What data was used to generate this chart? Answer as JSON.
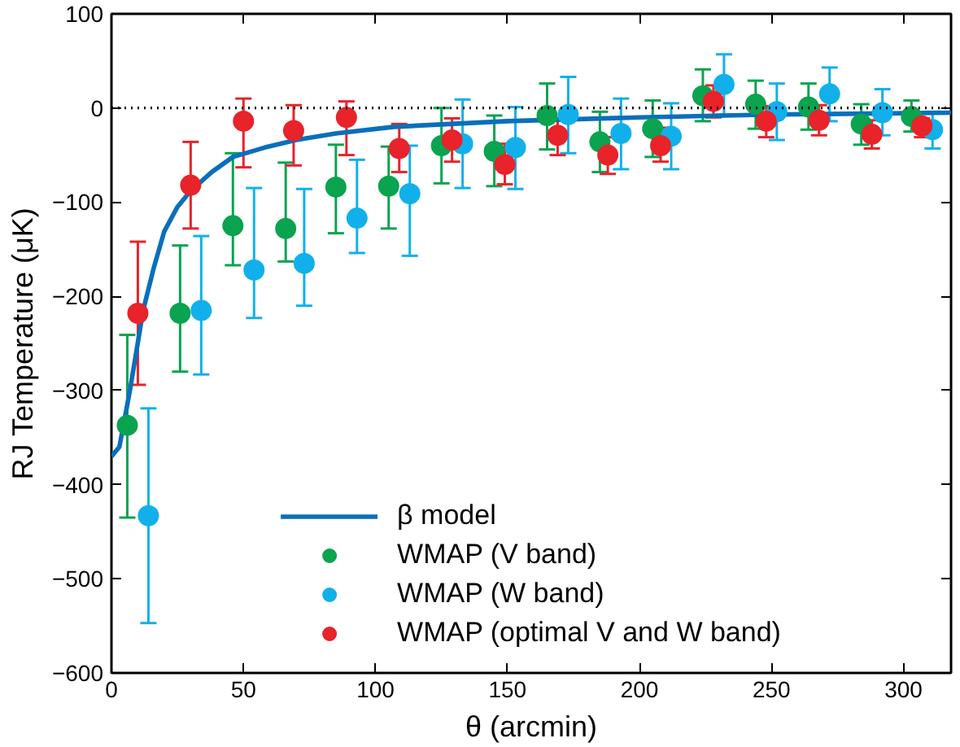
{
  "chart_data": {
    "type": "scatter",
    "xlabel": "θ (arcmin)",
    "ylabel": "RJ Temperature (μK)",
    "xlim": [
      0,
      318
    ],
    "ylim": [
      -600,
      100
    ],
    "xticks": [
      0,
      50,
      100,
      150,
      200,
      250,
      300
    ],
    "yticks": [
      -600,
      -500,
      -400,
      -300,
      -200,
      -100,
      0,
      100
    ],
    "grid": false,
    "legend": "bottom",
    "ref_lines": [
      {
        "axis": "y",
        "value": 0,
        "color": "#000000",
        "line_style": "dotted"
      }
    ],
    "series": [
      {
        "name": "β model",
        "type": "line",
        "marker": "none",
        "color": "#0a6fba",
        "line_style": "solid",
        "x": [
          0,
          3,
          7,
          12,
          16,
          20,
          25,
          30,
          38,
          46,
          58,
          70,
          85,
          107,
          150,
          200,
          250,
          318
        ],
        "values": [
          -370,
          -360,
          -300,
          -215,
          -170,
          -131,
          -105,
          -88,
          -68,
          -52,
          -42,
          -34,
          -27,
          -20,
          -14,
          -10,
          -7,
          -5
        ]
      },
      {
        "name": "WMAP (V band)",
        "marker": "circle",
        "color": "#0aa350",
        "x": [
          6,
          26,
          46,
          66,
          85,
          105,
          125,
          145,
          165,
          185,
          205,
          224,
          244,
          264,
          284,
          303
        ],
        "values": [
          -337,
          -218,
          -125,
          -128,
          -84,
          -83,
          -40,
          -46,
          -8,
          -36,
          -22,
          13,
          4,
          1,
          -17,
          -9
        ],
        "errors": [
          [
            -435,
            -241
          ],
          [
            -280,
            -146
          ],
          [
            -167,
            -48
          ],
          [
            -163,
            -58
          ],
          [
            -133,
            -39
          ],
          [
            -128,
            -41
          ],
          [
            -80,
            0
          ],
          [
            -83,
            -8
          ],
          [
            -44,
            26
          ],
          [
            -68,
            -4
          ],
          [
            -52,
            8
          ],
          [
            -14,
            41
          ],
          [
            -22,
            29
          ],
          [
            -23,
            26
          ],
          [
            -39,
            4
          ],
          [
            -25,
            8
          ]
        ]
      },
      {
        "name": "WMAP (W band)",
        "marker": "circle",
        "color": "#12b0ea",
        "x": [
          14,
          34,
          54,
          73,
          93,
          113,
          133,
          153,
          173,
          193,
          212,
          232,
          252,
          272,
          292,
          311
        ],
        "values": [
          -433,
          -215,
          -172,
          -165,
          -117,
          -91,
          -38,
          -42,
          -7,
          -27,
          -30,
          25,
          -4,
          15,
          -5,
          -23
        ],
        "errors": [
          [
            -547,
            -319
          ],
          [
            -283,
            -136
          ],
          [
            -223,
            -85
          ],
          [
            -210,
            -86
          ],
          [
            -154,
            -55
          ],
          [
            -157,
            -40
          ],
          [
            -85,
            9
          ],
          [
            -86,
            1
          ],
          [
            -48,
            33
          ],
          [
            -65,
            10
          ],
          [
            -65,
            5
          ],
          [
            -7,
            57
          ],
          [
            -34,
            26
          ],
          [
            -14,
            43
          ],
          [
            -29,
            20
          ],
          [
            -43,
            -4
          ]
        ]
      },
      {
        "name": "WMAP (optimal V and W band)",
        "marker": "circle",
        "color": "#e8232a",
        "x": [
          10,
          30,
          50,
          69,
          89,
          109,
          129,
          149,
          169,
          188,
          208,
          228,
          248,
          268,
          288,
          307
        ],
        "values": [
          -218,
          -82,
          -14,
          -24,
          -10,
          -43,
          -34,
          -60,
          -29,
          -50,
          -40,
          7,
          -14,
          -13,
          -28,
          -19
        ],
        "errors": [
          [
            -294,
            -142
          ],
          [
            -128,
            -36
          ],
          [
            -63,
            10
          ],
          [
            -61,
            3
          ],
          [
            -50,
            7
          ],
          [
            -68,
            -17
          ],
          [
            -57,
            -11
          ],
          [
            -81,
            -38
          ],
          [
            -50,
            -11
          ],
          [
            -70,
            -31
          ],
          [
            -57,
            -21
          ],
          [
            -10,
            24
          ],
          [
            -31,
            2
          ],
          [
            -29,
            3
          ],
          [
            -43,
            -13
          ],
          [
            -31,
            -11
          ]
        ]
      }
    ]
  }
}
